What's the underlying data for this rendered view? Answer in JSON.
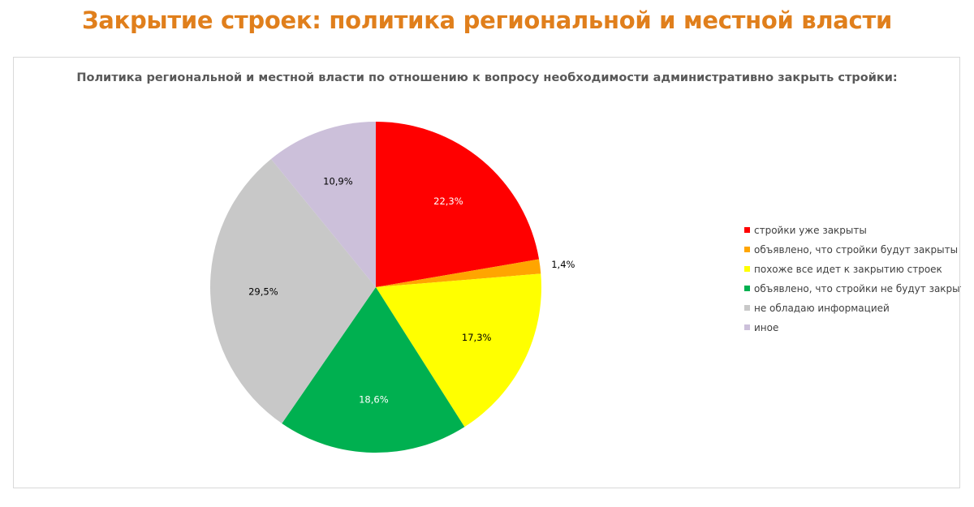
{
  "page_title": "Закрытие строек: политика региональной и местной власти",
  "chart_data": {
    "type": "pie",
    "title": "Политика региональной и местной власти по отношению к вопросу необходимости административно закрыть стройки:",
    "categories": [
      "стройки уже закрыты",
      "объявлено, что стройки будут закрыты",
      "похоже все идет к закрытию строек",
      "объявлено, что стройки не будут закрыты",
      "не обладаю информацией",
      "иное"
    ],
    "values": [
      22.3,
      1.4,
      17.3,
      18.6,
      29.5,
      10.9
    ],
    "labels": [
      "22,3%",
      "1,4%",
      "17,3%",
      "18,6%",
      "29,5%",
      "10,9%"
    ],
    "colors": [
      "#ff0000",
      "#ffa500",
      "#ffff00",
      "#00b050",
      "#c8c8c8",
      "#ccc0da"
    ],
    "label_colors": [
      "#ffffff",
      "#000000",
      "#000000",
      "#ffffff",
      "#000000",
      "#000000"
    ],
    "legend_position": "right"
  }
}
